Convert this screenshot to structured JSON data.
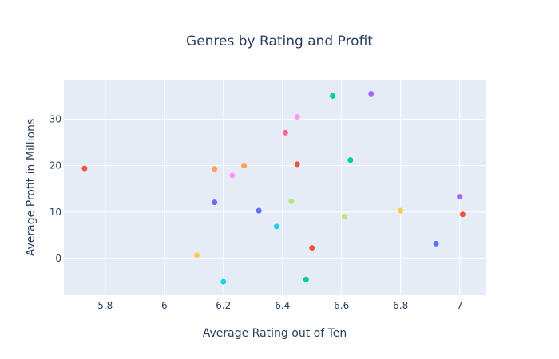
{
  "chart_data": {
    "type": "scatter",
    "title": "Genres by Rating and Profit",
    "xlabel": "Average Rating out of Ten",
    "ylabel": "Average Profit in Millions",
    "xlim": [
      5.66,
      7.09
    ],
    "ylim": [
      -7.9,
      38.5
    ],
    "xticks": [
      5.8,
      6,
      6.2,
      6.4,
      6.6,
      6.8,
      7
    ],
    "xtick_labels": [
      "5.8",
      "6",
      "6.2",
      "6.4",
      "6.6",
      "6.8",
      "7"
    ],
    "yticks": [
      0,
      10,
      20,
      30
    ],
    "ytick_labels": [
      "0",
      "10",
      "20",
      "30"
    ],
    "grid": true,
    "points": [
      {
        "x": 5.73,
        "y": 19.4,
        "color": "#EF553B"
      },
      {
        "x": 6.11,
        "y": 0.7,
        "color": "#FECB52"
      },
      {
        "x": 6.17,
        "y": 19.3,
        "color": "#FFA15A"
      },
      {
        "x": 6.17,
        "y": 12.1,
        "color": "#636EFA"
      },
      {
        "x": 6.2,
        "y": -5.0,
        "color": "#19D3F3"
      },
      {
        "x": 6.23,
        "y": 17.9,
        "color": "#FF97FF"
      },
      {
        "x": 6.27,
        "y": 20.0,
        "color": "#FFA15A"
      },
      {
        "x": 6.32,
        "y": 10.3,
        "color": "#636EFA"
      },
      {
        "x": 6.38,
        "y": 6.9,
        "color": "#19D3F3"
      },
      {
        "x": 6.41,
        "y": 27.1,
        "color": "#FF6692"
      },
      {
        "x": 6.43,
        "y": 12.3,
        "color": "#B6E880"
      },
      {
        "x": 6.45,
        "y": 30.5,
        "color": "#FF97FF"
      },
      {
        "x": 6.45,
        "y": 20.3,
        "color": "#EF553B"
      },
      {
        "x": 6.48,
        "y": -4.5,
        "color": "#00CC96"
      },
      {
        "x": 6.5,
        "y": 2.3,
        "color": "#EF553B"
      },
      {
        "x": 6.57,
        "y": 35.0,
        "color": "#00CC96"
      },
      {
        "x": 6.61,
        "y": 9.0,
        "color": "#B6E880"
      },
      {
        "x": 6.63,
        "y": 21.2,
        "color": "#00CC96"
      },
      {
        "x": 6.7,
        "y": 35.5,
        "color": "#AB63FA"
      },
      {
        "x": 6.8,
        "y": 10.3,
        "color": "#FECB52"
      },
      {
        "x": 6.92,
        "y": 3.2,
        "color": "#636EFA"
      },
      {
        "x": 7.0,
        "y": 13.3,
        "color": "#AB63FA"
      },
      {
        "x": 7.01,
        "y": 9.5,
        "color": "#EF553B"
      }
    ],
    "colors": {
      "plot_bg": "#E5ECF6",
      "grid": "#ffffff",
      "text": "#2a3f5f"
    }
  }
}
